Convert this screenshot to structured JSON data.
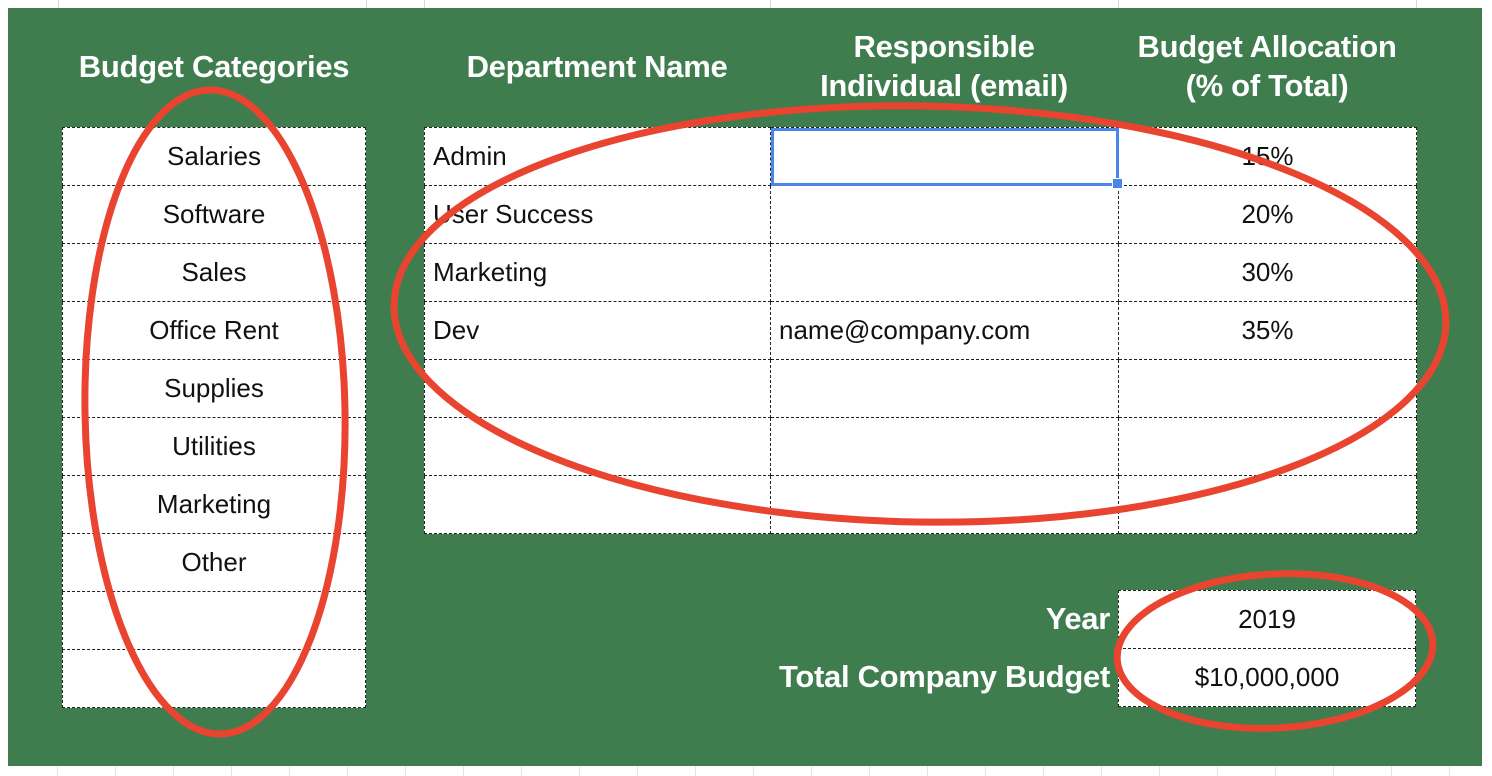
{
  "colors": {
    "sheet_fill": "#3f7d4e",
    "annotation_stroke": "#e8442f",
    "selection": "#4a86e8",
    "header_text": "#ffffff"
  },
  "headers": {
    "budget_categories": "Budget Categories",
    "department_name": "Department Name",
    "responsible_line1": "Responsible",
    "responsible_line2": "Individual (email)",
    "allocation_line1": "Budget Allocation",
    "allocation_line2": "(% of Total)"
  },
  "categories": [
    "Salaries",
    "Software",
    "Sales",
    "Office Rent",
    "Supplies",
    "Utilities",
    "Marketing",
    "Other",
    "",
    ""
  ],
  "departments": [
    {
      "name": "Admin",
      "email": "",
      "allocation": "15%"
    },
    {
      "name": "User Success",
      "email": "",
      "allocation": "20%"
    },
    {
      "name": "Marketing",
      "email": "",
      "allocation": "30%"
    },
    {
      "name": "Dev",
      "email": "name@company.com",
      "allocation": "35%"
    },
    {
      "name": "",
      "email": "",
      "allocation": ""
    },
    {
      "name": "",
      "email": "",
      "allocation": ""
    },
    {
      "name": "",
      "email": "",
      "allocation": ""
    }
  ],
  "summary": {
    "year_label": "Year",
    "year_value": "2019",
    "total_label": "Total Company Budget",
    "total_value": "$10,000,000"
  }
}
